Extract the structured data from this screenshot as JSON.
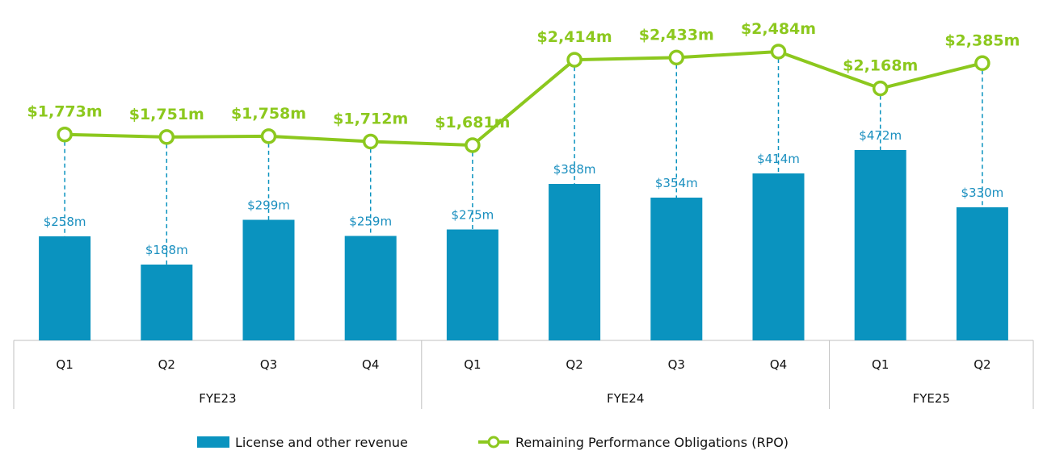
{
  "chart_data": {
    "type": "bar",
    "categories": [
      "Q1",
      "Q2",
      "Q3",
      "Q4",
      "Q1",
      "Q2",
      "Q3",
      "Q4",
      "Q1",
      "Q2"
    ],
    "groups": [
      {
        "label": "FYE23",
        "count": 4
      },
      {
        "label": "FYE24",
        "count": 4
      },
      {
        "label": "FYE25",
        "count": 2
      }
    ],
    "series": [
      {
        "name": "License and other revenue",
        "kind": "bar",
        "values": [
          258,
          188,
          299,
          259,
          275,
          388,
          354,
          414,
          472,
          330
        ],
        "labels": [
          "$258m",
          "$188m",
          "$299m",
          "$259m",
          "$275m",
          "$388m",
          "$354m",
          "$414m",
          "$472m",
          "$330m"
        ]
      },
      {
        "name": "Remaining Performance Obligations (RPO)",
        "kind": "line",
        "values": [
          1773,
          1751,
          1758,
          1712,
          1681,
          2414,
          2433,
          2484,
          2168,
          2385
        ],
        "labels": [
          "$1,773m",
          "$1,751m",
          "$1,758m",
          "$1,712m",
          "$1,681m",
          "$2,414m",
          "$2,433m",
          "$2,484m",
          "$2,168m",
          "$2,385m"
        ]
      }
    ],
    "title": "",
    "xlabel": "",
    "ylabel": "",
    "grid": false,
    "legend": "bottom-center"
  },
  "colors": {
    "bar": "#0a93bf",
    "bar_label": "#1a8fbf",
    "line": "#8cc81e",
    "axis": "#c0c0c0"
  }
}
